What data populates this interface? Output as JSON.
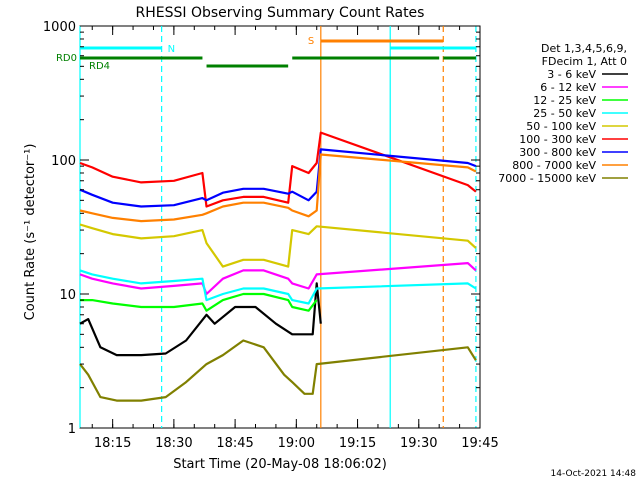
{
  "chart_data": {
    "type": "line",
    "title": "RHESSI Observing Summary Count Rates",
    "xlabel": "Start Time (20-May-08 18:06:02)",
    "ylabel": "Count Rate (s⁻¹ detector⁻¹)",
    "yscale": "log",
    "ylim": [
      1,
      1000
    ],
    "xlim": [
      "18:07",
      "19:45"
    ],
    "x_ticks": [
      "18:15",
      "18:30",
      "18:45",
      "19:00",
      "19:15",
      "19:30",
      "19:45"
    ],
    "y_ticks": [
      "1",
      "10",
      "100",
      "1000"
    ],
    "legend_header": [
      "Det 1,3,4,5,6,9,",
      "FDecim 1, Att 0"
    ],
    "legend_position": "right",
    "series": [
      {
        "name": "3 - 6 keV",
        "color": "#000000",
        "points": [
          [
            "18:07",
            6
          ],
          [
            "18:09",
            6.5
          ],
          [
            "18:12",
            4
          ],
          [
            "18:16",
            3.5
          ],
          [
            "18:22",
            3.5
          ],
          [
            "18:28",
            3.6
          ],
          [
            "18:33",
            4.5
          ],
          [
            "18:38",
            7
          ],
          [
            "18:40",
            6
          ],
          [
            "18:45",
            8
          ],
          [
            "18:50",
            8
          ],
          [
            "18:55",
            6
          ],
          [
            "18:59",
            5
          ],
          [
            "19:02",
            5
          ],
          [
            "19:04",
            5
          ],
          [
            "19:05",
            12
          ],
          [
            "19:06",
            6
          ]
        ]
      },
      {
        "name": "6 - 12 keV",
        "color": "#ff00ff",
        "points": [
          [
            "18:07",
            14
          ],
          [
            "18:10",
            13
          ],
          [
            "18:15",
            12
          ],
          [
            "18:22",
            11
          ],
          [
            "18:30",
            11.5
          ],
          [
            "18:37",
            12
          ],
          [
            "18:38",
            10
          ],
          [
            "18:42",
            13
          ],
          [
            "18:47",
            15
          ],
          [
            "18:52",
            15
          ],
          [
            "18:58",
            13
          ],
          [
            "18:59",
            12
          ],
          [
            "19:03",
            11
          ],
          [
            "19:05",
            14
          ],
          [
            "19:42",
            17
          ],
          [
            "19:44",
            15
          ]
        ]
      },
      {
        "name": "12 - 25 keV",
        "color": "#00ff00",
        "points": [
          [
            "18:07",
            9
          ],
          [
            "18:10",
            9
          ],
          [
            "18:15",
            8.5
          ],
          [
            "18:22",
            8
          ],
          [
            "18:30",
            8
          ],
          [
            "18:37",
            8.5
          ],
          [
            "18:38",
            7.5
          ],
          [
            "18:42",
            9
          ],
          [
            "18:47",
            10
          ],
          [
            "18:52",
            10
          ],
          [
            "18:58",
            9
          ],
          [
            "18:59",
            8
          ],
          [
            "19:03",
            7.5
          ],
          [
            "19:05",
            9
          ]
        ]
      },
      {
        "name": "25 - 50 keV",
        "color": "#00ffff",
        "points": [
          [
            "18:07",
            15
          ],
          [
            "18:10",
            14
          ],
          [
            "18:15",
            13
          ],
          [
            "18:22",
            12
          ],
          [
            "18:30",
            12.5
          ],
          [
            "18:37",
            13
          ],
          [
            "18:38",
            9
          ],
          [
            "18:42",
            10
          ],
          [
            "18:47",
            11
          ],
          [
            "18:52",
            11
          ],
          [
            "18:58",
            10
          ],
          [
            "18:59",
            9
          ],
          [
            "19:03",
            8.5
          ],
          [
            "19:05",
            11
          ],
          [
            "19:42",
            12
          ],
          [
            "19:44",
            11
          ]
        ]
      },
      {
        "name": "50 - 100 keV",
        "color": "#d4c800",
        "points": [
          [
            "18:07",
            33
          ],
          [
            "18:10",
            31
          ],
          [
            "18:15",
            28
          ],
          [
            "18:22",
            26
          ],
          [
            "18:30",
            27
          ],
          [
            "18:37",
            30
          ],
          [
            "18:38",
            24
          ],
          [
            "18:42",
            16
          ],
          [
            "18:47",
            18
          ],
          [
            "18:52",
            18
          ],
          [
            "18:58",
            16
          ],
          [
            "18:59",
            30
          ],
          [
            "19:03",
            28
          ],
          [
            "19:05",
            32
          ],
          [
            "19:42",
            25
          ],
          [
            "19:44",
            22
          ]
        ]
      },
      {
        "name": "100 - 300 keV",
        "color": "#ff0000",
        "points": [
          [
            "18:07",
            95
          ],
          [
            "18:10",
            88
          ],
          [
            "18:15",
            75
          ],
          [
            "18:22",
            68
          ],
          [
            "18:30",
            70
          ],
          [
            "18:37",
            80
          ],
          [
            "18:38",
            45
          ],
          [
            "18:42",
            50
          ],
          [
            "18:47",
            53
          ],
          [
            "18:52",
            53
          ],
          [
            "18:58",
            48
          ],
          [
            "18:59",
            90
          ],
          [
            "19:03",
            80
          ],
          [
            "19:05",
            95
          ],
          [
            "19:06",
            160
          ],
          [
            "19:42",
            65
          ],
          [
            "19:44",
            58
          ]
        ]
      },
      {
        "name": "300 - 800 keV",
        "color": "#0000ff",
        "points": [
          [
            "18:07",
            60
          ],
          [
            "18:10",
            55
          ],
          [
            "18:15",
            48
          ],
          [
            "18:22",
            45
          ],
          [
            "18:30",
            46
          ],
          [
            "18:37",
            52
          ],
          [
            "18:38",
            50
          ],
          [
            "18:42",
            57
          ],
          [
            "18:47",
            61
          ],
          [
            "18:52",
            61
          ],
          [
            "18:58",
            56
          ],
          [
            "18:59",
            58
          ],
          [
            "19:03",
            50
          ],
          [
            "19:05",
            58
          ],
          [
            "19:06",
            120
          ],
          [
            "19:42",
            95
          ],
          [
            "19:44",
            90
          ]
        ]
      },
      {
        "name": "800 - 7000 keV",
        "color": "#ff8000",
        "points": [
          [
            "18:07",
            42
          ],
          [
            "18:10",
            40
          ],
          [
            "18:15",
            37
          ],
          [
            "18:22",
            35
          ],
          [
            "18:30",
            36
          ],
          [
            "18:37",
            39
          ],
          [
            "18:38",
            40
          ],
          [
            "18:42",
            45
          ],
          [
            "18:47",
            48
          ],
          [
            "18:52",
            48
          ],
          [
            "18:58",
            44
          ],
          [
            "18:59",
            42
          ],
          [
            "19:03",
            38
          ],
          [
            "19:05",
            42
          ],
          [
            "19:06",
            110
          ],
          [
            "19:42",
            88
          ],
          [
            "19:44",
            82
          ]
        ]
      },
      {
        "name": "7000 - 15000 keV",
        "color": "#808000",
        "points": [
          [
            "18:07",
            3
          ],
          [
            "18:09",
            2.5
          ],
          [
            "18:12",
            1.7
          ],
          [
            "18:16",
            1.6
          ],
          [
            "18:22",
            1.6
          ],
          [
            "18:28",
            1.7
          ],
          [
            "18:33",
            2.2
          ],
          [
            "18:38",
            3
          ],
          [
            "18:42",
            3.5
          ],
          [
            "18:47",
            4.5
          ],
          [
            "18:52",
            4
          ],
          [
            "18:57",
            2.5
          ],
          [
            "18:59",
            2.2
          ],
          [
            "19:02",
            1.8
          ],
          [
            "19:04",
            1.8
          ],
          [
            "19:05",
            3
          ],
          [
            "19:42",
            4
          ],
          [
            "19:44",
            3.2
          ]
        ]
      }
    ],
    "vertical_lines": [
      {
        "time": "18:07",
        "color": "#00ffff",
        "style": "solid"
      },
      {
        "time": "18:27",
        "color": "#00ffff",
        "style": "dashed"
      },
      {
        "time": "19:06",
        "color": "#ff8000",
        "style": "solid"
      },
      {
        "time": "19:23",
        "color": "#00ffff",
        "style": "solid"
      },
      {
        "time": "19:36",
        "color": "#ff8000",
        "style": "dashed"
      },
      {
        "time": "19:44",
        "color": "#00ffff",
        "style": "dashed"
      }
    ],
    "flag_bars": [
      {
        "label": "N",
        "color": "#00ffff",
        "segments": [
          [
            "18:07",
            "18:27"
          ],
          [
            "19:23",
            "19:44"
          ]
        ]
      },
      {
        "label": "S",
        "color": "#ff8000",
        "segments": [
          [
            "19:06",
            "19:36"
          ]
        ]
      },
      {
        "label": "RD0",
        "color": "#008000",
        "segments": [
          [
            "18:07",
            "18:37"
          ],
          [
            "18:59",
            "19:35"
          ],
          [
            "19:36",
            "19:44"
          ]
        ]
      },
      {
        "label": "RD4",
        "color": "#008000",
        "segments": [
          [
            "18:38",
            "18:58"
          ]
        ]
      }
    ],
    "footer_date": "14-Oct-2021 14:48"
  }
}
